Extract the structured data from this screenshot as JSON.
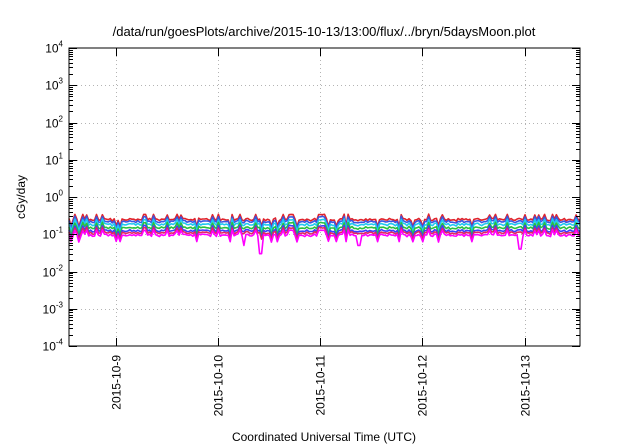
{
  "chart_data": {
    "type": "line",
    "title": "/data/run/goesPlots/archive/2015-10-13/13:00/flux/../bryn/5daysMoon.plot",
    "xlabel": "Coordinated Universal Time (UTC)",
    "ylabel": "cGy/day",
    "yscale": "log",
    "grid": true,
    "xlim": [
      "2015-10-08T13:00",
      "2015-10-13T13:00"
    ],
    "ylim": [
      0.0001,
      10000
    ],
    "y_ticks": [
      {
        "base": "10",
        "exp": "-4",
        "value": 0.0001
      },
      {
        "base": "10",
        "exp": "-3",
        "value": 0.001
      },
      {
        "base": "10",
        "exp": "-2",
        "value": 0.01
      },
      {
        "base": "10",
        "exp": "-1",
        "value": 0.1
      },
      {
        "base": "10",
        "exp": "0",
        "value": 1
      },
      {
        "base": "10",
        "exp": "1",
        "value": 10
      },
      {
        "base": "10",
        "exp": "2",
        "value": 100
      },
      {
        "base": "10",
        "exp": "3",
        "value": 1000
      },
      {
        "base": "10",
        "exp": "4",
        "value": 10000
      }
    ],
    "x_ticks": [
      {
        "label": "2015-10-9",
        "time": "2015-10-09T00:00"
      },
      {
        "label": "2015-10-10",
        "time": "2015-10-10T00:00"
      },
      {
        "label": "2015-10-11",
        "time": "2015-10-11T00:00"
      },
      {
        "label": "2015-10-12",
        "time": "2015-10-12T00:00"
      },
      {
        "label": "2015-10-13",
        "time": "2015-10-13T00:00"
      }
    ],
    "series": [
      {
        "color": "#e0232b",
        "level": 0.25,
        "dips": []
      },
      {
        "color": "#3a55e0",
        "level": 0.22,
        "dips": []
      },
      {
        "color": "#20c8f0",
        "level": 0.185,
        "dips": []
      },
      {
        "color": "#28c040",
        "level": 0.15,
        "dips": []
      },
      {
        "color": "#3c3cff",
        "level": 0.125,
        "dips": []
      },
      {
        "color": "#e02860",
        "level": 0.11,
        "dips": []
      },
      {
        "color": "#ff00ff",
        "level": 0.095,
        "dips": [
          {
            "time": "2015-10-10T06:00",
            "value": 0.05
          },
          {
            "time": "2015-10-10T10:00",
            "value": 0.03
          },
          {
            "time": "2015-10-11T09:00",
            "value": 0.05
          },
          {
            "time": "2015-10-12T23:00",
            "value": 0.04
          }
        ]
      }
    ]
  }
}
